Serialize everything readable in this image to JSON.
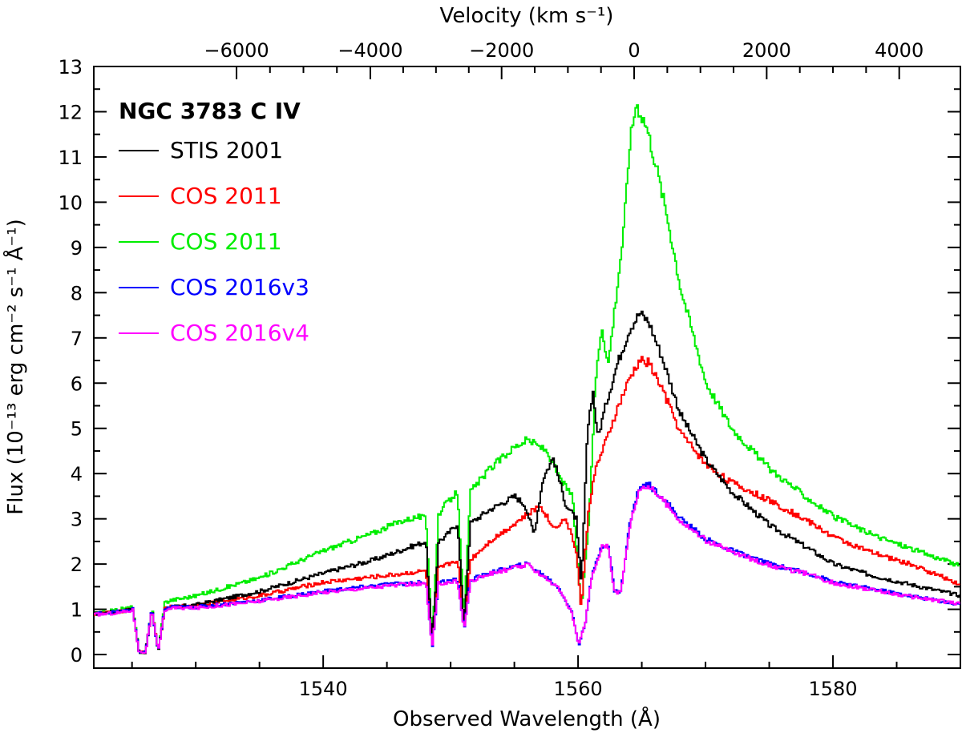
{
  "chart_data": {
    "type": "line",
    "title": "NGC 3783 C IV",
    "xlabel": "Observed Wavelength (Å)",
    "ylabel": "Flux (10⁻¹³ erg cm⁻² s⁻¹ Å⁻¹)",
    "x2label": "Velocity (km s⁻¹)",
    "xlim": [
      1522,
      1590
    ],
    "ylim": [
      -0.3,
      13
    ],
    "x_ticks": [
      1540,
      1560,
      1580
    ],
    "y_ticks": [
      0,
      1,
      2,
      3,
      4,
      5,
      6,
      7,
      8,
      9,
      10,
      11,
      12,
      13
    ],
    "x2_ticks": [
      {
        "label": "−6000",
        "wavelength": 1533.2
      },
      {
        "label": "−4000",
        "wavelength": 1543.7
      },
      {
        "label": "−2000",
        "wavelength": 1554.0
      },
      {
        "label": "0",
        "wavelength": 1564.4
      },
      {
        "label": "2000",
        "wavelength": 1574.8
      },
      {
        "label": "4000",
        "wavelength": 1585.2
      }
    ],
    "grid": false,
    "legend_position": "top-left",
    "series": [
      {
        "name": "STIS 2001",
        "color": "#000000",
        "x": [
          1522,
          1524,
          1525,
          1525.5,
          1526,
          1526.5,
          1527,
          1527.5,
          1528,
          1530,
          1535,
          1540,
          1544,
          1546,
          1548,
          1548.5,
          1549,
          1549.5,
          1550.5,
          1551,
          1551.5,
          1553,
          1555,
          1555.8,
          1556.5,
          1557.2,
          1558,
          1559,
          1559.8,
          1560.2,
          1560.7,
          1561.1,
          1561.5,
          1562.2,
          1563,
          1564,
          1564.8,
          1565.5,
          1566.5,
          1568,
          1570,
          1572,
          1575,
          1578,
          1580,
          1583,
          1586,
          1590
        ],
        "values": [
          0.9,
          0.95,
          1.0,
          0.05,
          0.05,
          1.0,
          0.05,
          1.0,
          1.05,
          1.1,
          1.4,
          1.8,
          2.1,
          2.3,
          2.5,
          0.2,
          2.5,
          2.6,
          2.9,
          0.6,
          2.9,
          3.2,
          3.5,
          3.3,
          2.65,
          3.9,
          4.35,
          3.3,
          3.0,
          1.5,
          5.0,
          5.85,
          4.8,
          5.6,
          6.4,
          7.2,
          7.55,
          7.35,
          6.6,
          5.3,
          4.3,
          3.6,
          2.85,
          2.35,
          2.0,
          1.75,
          1.55,
          1.3
        ]
      },
      {
        "name": "COS 2011",
        "color": "#ff0000",
        "x": [
          1522,
          1524,
          1525,
          1525.5,
          1526,
          1526.5,
          1527,
          1527.5,
          1528,
          1530,
          1535,
          1540,
          1545,
          1548,
          1548.5,
          1549,
          1550.5,
          1551,
          1551.5,
          1553,
          1555,
          1557,
          1558,
          1559,
          1559.8,
          1560.2,
          1560.7,
          1561.2,
          1562,
          1563,
          1564,
          1564.8,
          1565.5,
          1566.5,
          1568,
          1570,
          1572,
          1575,
          1578,
          1580,
          1583,
          1586,
          1590
        ],
        "values": [
          0.9,
          0.95,
          1.0,
          0.05,
          0.05,
          1.0,
          0.05,
          1.0,
          1.05,
          1.1,
          1.3,
          1.6,
          1.75,
          1.85,
          0.2,
          1.9,
          2.1,
          0.6,
          2.1,
          2.5,
          2.9,
          3.3,
          2.8,
          3.0,
          2.3,
          1.0,
          3.0,
          4.0,
          4.6,
          5.4,
          6.1,
          6.5,
          6.45,
          5.9,
          4.9,
          4.2,
          3.8,
          3.4,
          2.95,
          2.6,
          2.25,
          2.0,
          1.55
        ]
      },
      {
        "name": "COS 2011",
        "color": "#00ee00",
        "x": [
          1522,
          1524,
          1525,
          1525.5,
          1526,
          1526.5,
          1527,
          1527.5,
          1528,
          1530,
          1535,
          1540,
          1544,
          1546,
          1547.5,
          1548,
          1548.5,
          1549,
          1549.5,
          1550.5,
          1551,
          1551.5,
          1553,
          1555,
          1556,
          1557.5,
          1558.5,
          1559.5,
          1560.2,
          1560.8,
          1561.3,
          1561.8,
          1562.3,
          1562.8,
          1563.5,
          1564,
          1564.5,
          1565.3,
          1566,
          1567,
          1568,
          1570,
          1572,
          1575,
          1578,
          1580,
          1583,
          1586,
          1590
        ],
        "values": [
          0.9,
          1.0,
          1.05,
          0.05,
          0.05,
          1.05,
          0.05,
          1.15,
          1.2,
          1.3,
          1.7,
          2.3,
          2.7,
          2.95,
          3.05,
          3.0,
          0.3,
          3.1,
          3.3,
          3.6,
          0.8,
          3.6,
          4.1,
          4.6,
          4.75,
          4.5,
          3.9,
          3.5,
          1.0,
          3.0,
          6.0,
          7.3,
          6.4,
          7.6,
          9.3,
          11.3,
          12.2,
          11.7,
          10.9,
          9.6,
          8.1,
          6.0,
          5.0,
          4.1,
          3.45,
          3.05,
          2.65,
          2.35,
          1.95
        ]
      },
      {
        "name": "COS 2016v3",
        "color": "#0000ff",
        "x": [
          1522,
          1524,
          1525,
          1525.5,
          1526,
          1526.5,
          1527,
          1527.5,
          1528,
          1530,
          1535,
          1540,
          1545,
          1548,
          1548.5,
          1549,
          1550.5,
          1551,
          1551.5,
          1553,
          1555,
          1556,
          1557.5,
          1558.5,
          1559.5,
          1560,
          1560.5,
          1561,
          1561.8,
          1562.3,
          1562.8,
          1563.3,
          1564,
          1564.8,
          1565.5,
          1566.5,
          1568,
          1570,
          1572,
          1575,
          1578,
          1580,
          1583,
          1586,
          1590
        ],
        "values": [
          0.9,
          0.95,
          1.0,
          0.05,
          0.05,
          1.0,
          0.05,
          1.0,
          1.05,
          1.05,
          1.2,
          1.4,
          1.55,
          1.6,
          0.15,
          1.6,
          1.65,
          0.55,
          1.65,
          1.8,
          1.95,
          2.0,
          1.7,
          1.45,
          0.9,
          0.2,
          0.7,
          1.7,
          2.4,
          2.45,
          1.4,
          1.4,
          2.9,
          3.75,
          3.75,
          3.5,
          3.0,
          2.55,
          2.3,
          2.0,
          1.8,
          1.6,
          1.45,
          1.3,
          1.1
        ]
      },
      {
        "name": "COS 2016v4",
        "color": "#ff00ff",
        "x": [
          1522,
          1524,
          1525,
          1525.5,
          1526,
          1526.5,
          1527,
          1527.5,
          1528,
          1530,
          1535,
          1540,
          1545,
          1548,
          1548.5,
          1549,
          1550.5,
          1551,
          1551.5,
          1553,
          1555,
          1556,
          1557.5,
          1558.5,
          1559.5,
          1560,
          1560.5,
          1561,
          1561.8,
          1562.3,
          1562.8,
          1563.3,
          1564,
          1564.8,
          1565.5,
          1566.5,
          1568,
          1570,
          1572,
          1575,
          1578,
          1580,
          1583,
          1586,
          1590
        ],
        "values": [
          0.88,
          0.93,
          0.98,
          0.05,
          0.05,
          0.98,
          0.05,
          0.98,
          1.03,
          1.03,
          1.18,
          1.38,
          1.52,
          1.57,
          0.15,
          1.57,
          1.62,
          0.55,
          1.62,
          1.78,
          1.92,
          1.98,
          1.68,
          1.43,
          0.88,
          0.2,
          0.7,
          1.68,
          2.38,
          2.43,
          1.38,
          1.38,
          2.85,
          3.7,
          3.72,
          3.45,
          2.95,
          2.52,
          2.27,
          1.97,
          1.78,
          1.58,
          1.43,
          1.28,
          1.12
        ]
      }
    ]
  }
}
